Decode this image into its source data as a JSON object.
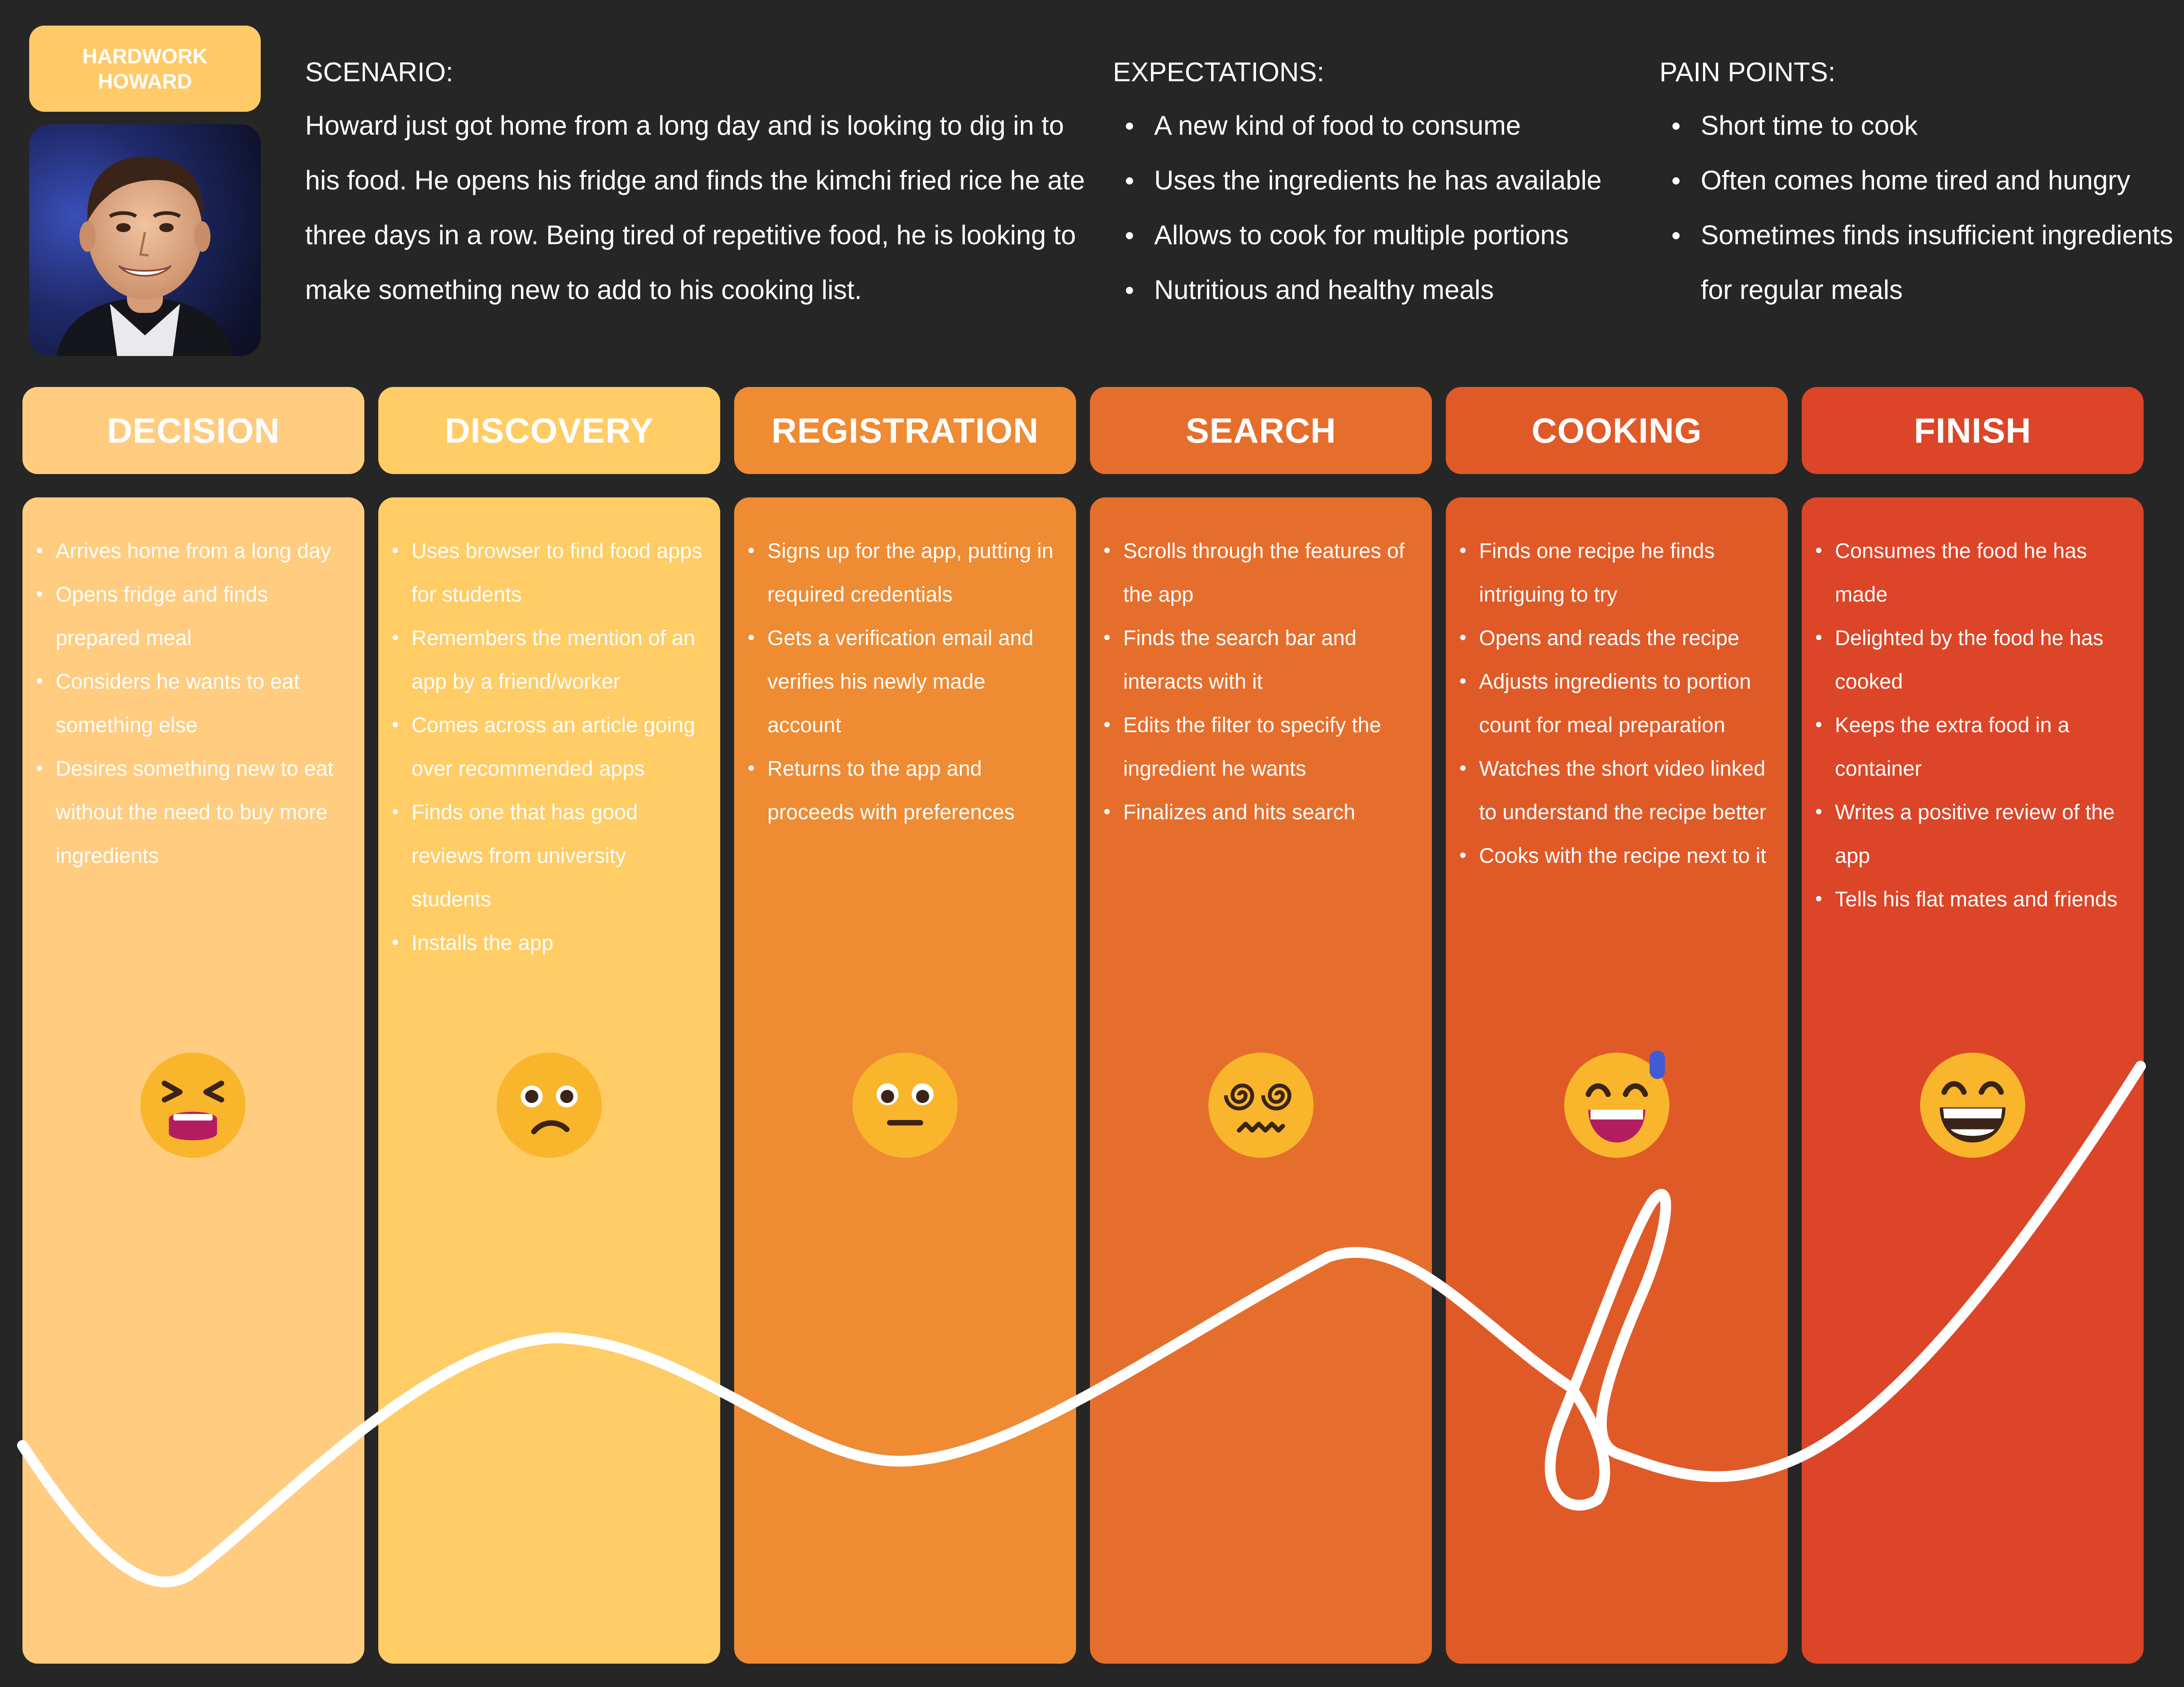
{
  "persona": {
    "name_line1": "HARDWORK",
    "name_line2": "HOWARD"
  },
  "scenario": {
    "title": "SCENARIO:",
    "text": "Howard just got home from a long day and is looking to dig in to his food. He opens his fridge and finds the kimchi fried rice he ate three days in a row. Being tired of repetitive food, he is looking to make something new to add to his cooking list."
  },
  "expectations": {
    "title": "EXPECTATIONS:",
    "items": [
      "A new kind of food to consume",
      "Uses the ingredients he has available",
      "Allows to cook for multiple portions",
      "Nutritious and healthy meals"
    ]
  },
  "pain_points": {
    "title": "PAIN POINTS:",
    "items": [
      "Short time to cook",
      "Often comes home tired and hungry",
      "Sometimes finds insufficient ingredients for regular meals"
    ]
  },
  "stages": [
    {
      "title": "DECISION",
      "header_color": "#FFCC80",
      "column_color": "#FFCC80",
      "emotion": "tired-face-icon",
      "actions": [
        "Arrives home from a long day",
        "Opens fridge and finds prepared meal",
        "Considers he wants to eat something else",
        "Desires something new to eat without the need to buy more ingredients"
      ]
    },
    {
      "title": "DISCOVERY",
      "header_color": "#FFCC66",
      "column_color": "#FFCC66",
      "emotion": "confused-face-icon",
      "actions": [
        "Uses browser to find food apps for students",
        "Remembers the mention of an app by a friend/worker",
        "Comes across an article going over recommended apps",
        "Finds one that has good reviews from university students",
        "Installs the app"
      ]
    },
    {
      "title": "REGISTRATION",
      "header_color": "#EE8B33",
      "column_color": "#EE8B33",
      "emotion": "neutral-face-icon",
      "actions": [
        "Signs up for the app, putting in required credentials",
        "Gets a verification email and verifies his newly made account",
        "Returns to the app and proceeds with preferences"
      ]
    },
    {
      "title": "SEARCH",
      "header_color": "#E66E2C",
      "column_color": "#E66E2C",
      "emotion": "dizzy-face-icon",
      "actions": [
        "Scrolls through the features of the app",
        "Finds the search bar and interacts with it",
        "Edits the filter to specify the ingredient he wants",
        "Finalizes and hits search"
      ]
    },
    {
      "title": "COOKING",
      "header_color": "#E05A28",
      "column_color": "#E05A28",
      "emotion": "grinning-sweat-face-icon",
      "actions": [
        "Finds one recipe he finds intriguing to try",
        "Opens and reads the recipe",
        "Adjusts ingredients to portion count for meal preparation",
        "Watches the short video linked to understand the recipe better",
        "Cooks with the recipe next to it"
      ]
    },
    {
      "title": "FINISH",
      "header_color": "#DC4527",
      "column_color": "#DC4527",
      "emotion": "beaming-face-icon",
      "actions": [
        "Consumes the food he has made",
        "Delighted by the food he has cooked",
        "Keeps the extra food in a container",
        "Writes a positive review of the app",
        "Tells his flat mates and friends"
      ]
    }
  ]
}
